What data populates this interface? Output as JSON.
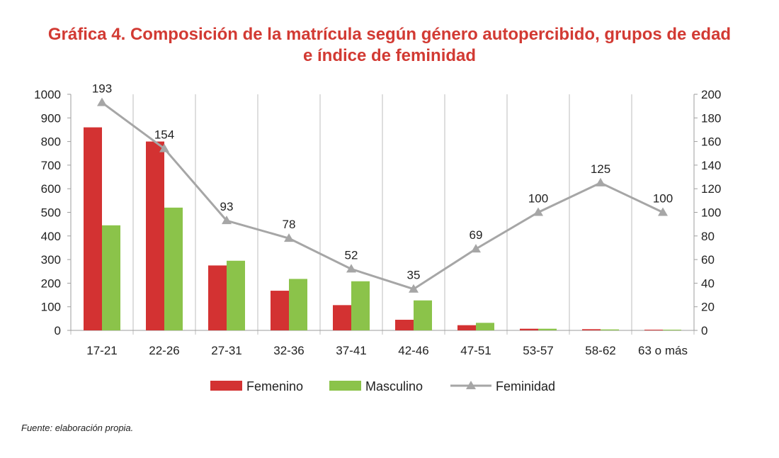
{
  "title_line1": "Gráfica 4. Composición de la matrícula según género autopercibido, grupos de edad",
  "title_line2": "e índice de feminidad",
  "source_note": "Fuente: elaboración propia.",
  "colors": {
    "femenino": "#d33232",
    "masculino": "#8bc34a",
    "feminidad": "#a6a6a6",
    "title": "#d23a33"
  },
  "chart_data": {
    "type": "bar",
    "categories": [
      "17-21",
      "22-26",
      "27-31",
      "32-36",
      "37-41",
      "42-46",
      "47-51",
      "53-57",
      "58-62",
      "63 o  más"
    ],
    "series": [
      {
        "name": "Femenino",
        "type": "bar",
        "axis": "left",
        "values": [
          860,
          800,
          275,
          168,
          107,
          45,
          22,
          7,
          5,
          3
        ]
      },
      {
        "name": "Masculino",
        "type": "bar",
        "axis": "left",
        "values": [
          445,
          520,
          295,
          218,
          208,
          127,
          32,
          7,
          4,
          3
        ]
      },
      {
        "name": "Feminidad",
        "type": "line",
        "axis": "right",
        "marker": "triangle",
        "values": [
          193,
          154,
          93,
          78,
          52,
          35,
          69,
          100,
          125,
          100
        ],
        "labels": [
          "193",
          "154",
          "93",
          "78",
          "52",
          "35",
          "69",
          "100",
          "125",
          "100"
        ]
      }
    ],
    "ylim_left": [
      0,
      1000
    ],
    "ylim_right": [
      0,
      200
    ],
    "yticks_left": [
      "0",
      "100",
      "200",
      "300",
      "400",
      "500",
      "600",
      "700",
      "800",
      "900",
      "1000"
    ],
    "yticks_right": [
      "0",
      "20",
      "40",
      "60",
      "80",
      "100",
      "120",
      "140",
      "160",
      "180",
      "200"
    ],
    "grid": "vertical category separators",
    "legend": "bottom"
  }
}
